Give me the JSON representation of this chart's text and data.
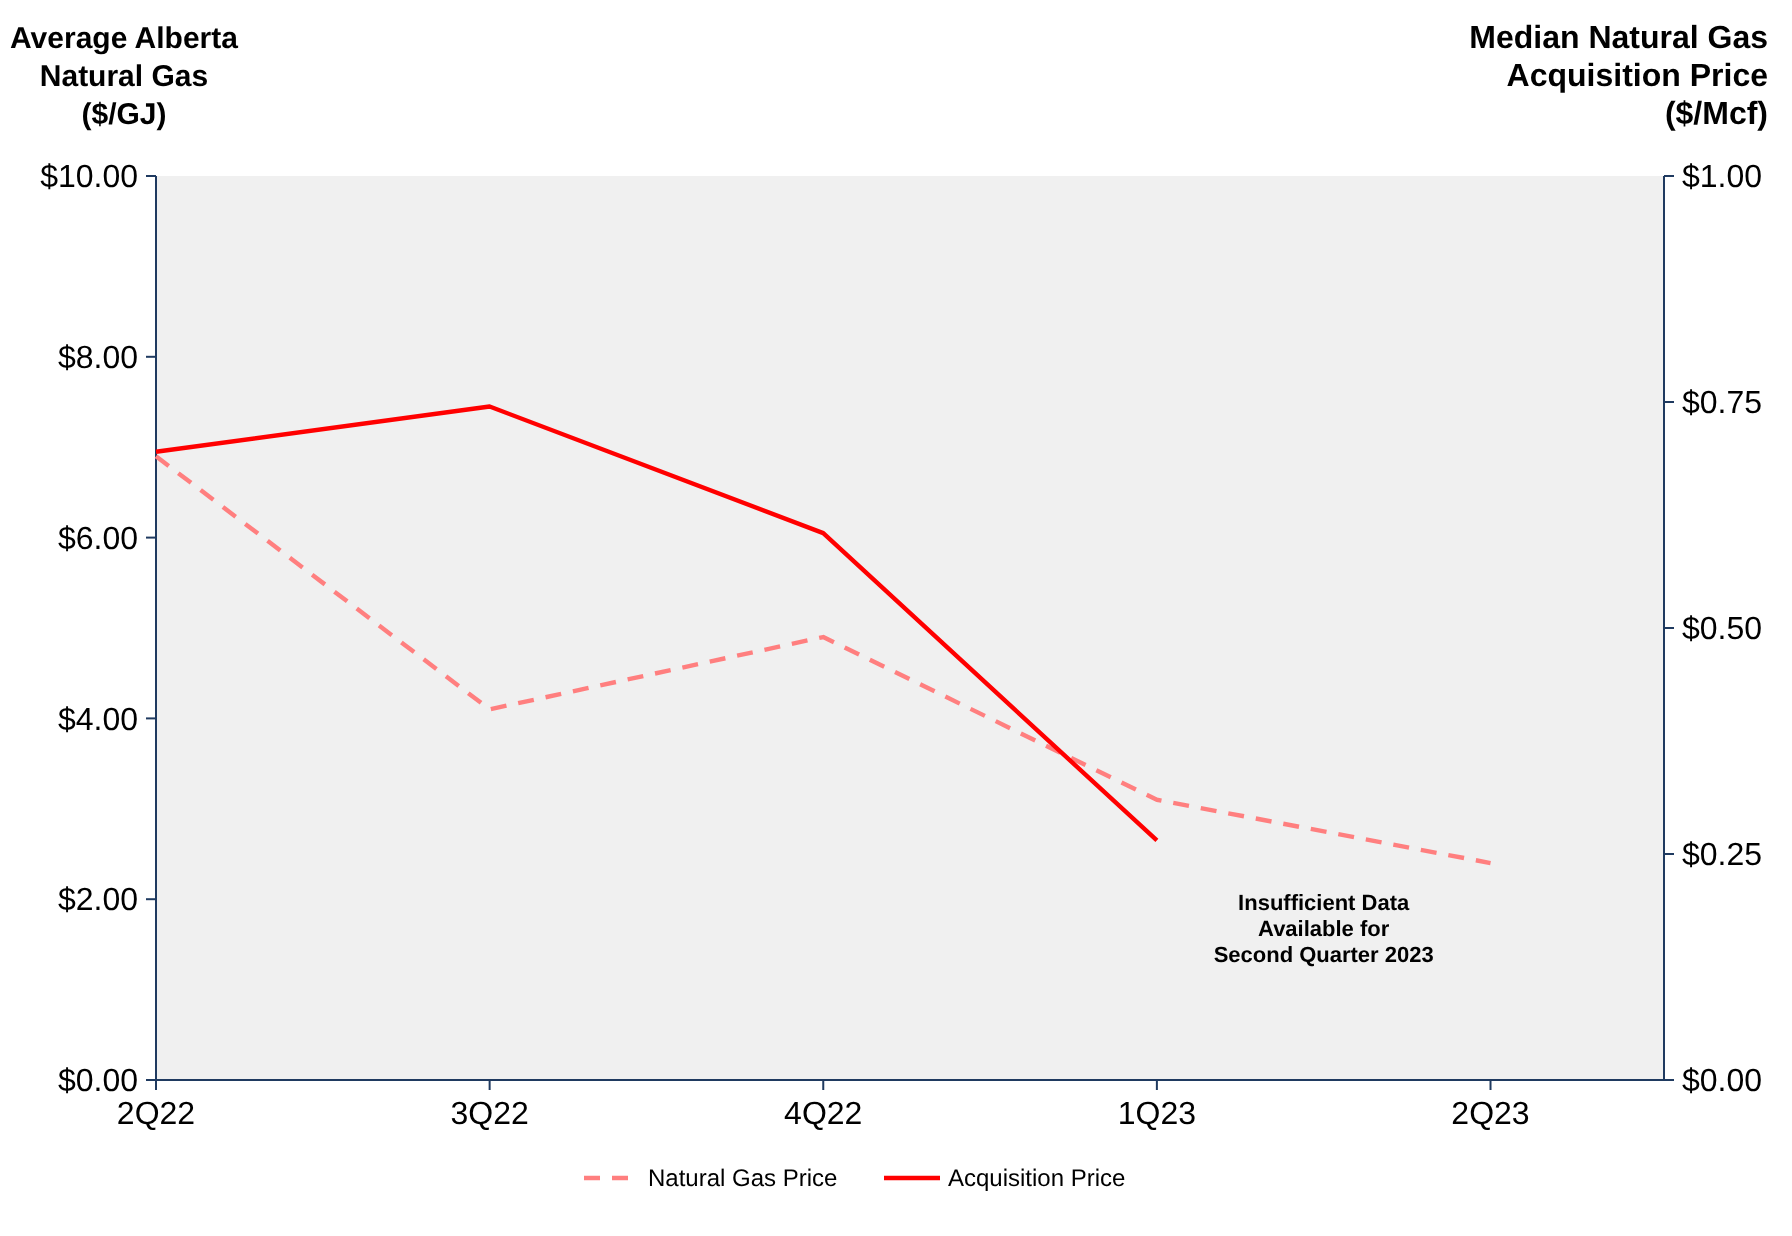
{
  "chart_data": {
    "type": "line",
    "ylabel": "Average Alberta\nNatural Gas\n($/GJ)",
    "y2label": "Median Natural Gas\nAcquisition Price\n($/Mcf)",
    "categories": [
      "2Q22",
      "3Q22",
      "4Q22",
      "1Q23",
      "2Q23"
    ],
    "series": [
      {
        "name": "Natural Gas Price",
        "color": "#ff7f7f",
        "line_style": "dashed",
        "values": [
          6.9,
          4.1,
          4.9,
          3.1,
          2.4
        ]
      },
      {
        "name": "Acquisition Price",
        "color": "#ff0000",
        "line_style": "solid",
        "axis": "y2",
        "values": [
          0.695,
          0.745,
          0.605,
          0.265,
          null
        ]
      }
    ],
    "ylim": [
      0,
      10
    ],
    "yticks": [
      {
        "value": 0,
        "label": "$0.00"
      },
      {
        "value": 2,
        "label": "$2.00"
      },
      {
        "value": 4,
        "label": "$4.00"
      },
      {
        "value": 6,
        "label": "$6.00"
      },
      {
        "value": 8,
        "label": "$8.00"
      },
      {
        "value": 10,
        "label": "$10.00"
      }
    ],
    "y2lim": [
      0,
      1
    ],
    "y2ticks": [
      {
        "value": 0,
        "label": "$0.00"
      },
      {
        "value": 0.25,
        "label": "$0.25"
      },
      {
        "value": 0.5,
        "label": "$0.50"
      },
      {
        "value": 0.75,
        "label": "$0.75"
      },
      {
        "value": 1,
        "label": "$1.00"
      }
    ],
    "annotations": [
      "Insufficient Data\nAvailable for\nSecond Quarter 2023"
    ],
    "legend": "bottom",
    "grid": false,
    "marker": "none"
  }
}
